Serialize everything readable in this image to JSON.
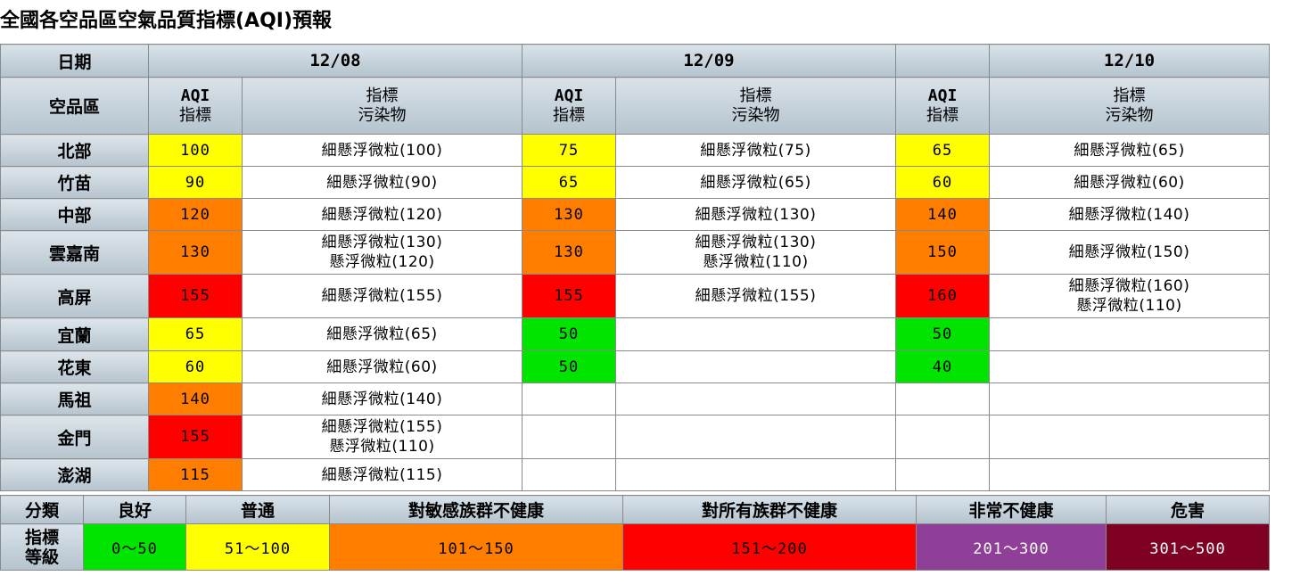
{
  "title": "全國各空品區空氣品質指標(AQI)預報",
  "header": {
    "date_label": "日期",
    "region_label": "空品區",
    "dates": [
      "12/08",
      "12/09",
      "",
      "12/10"
    ],
    "aqi_label_1": "AQI",
    "aqi_label_2": "指標",
    "poll_label_1": "指標",
    "poll_label_2": "污染物"
  },
  "colors": {
    "good": "#00e400",
    "moderate": "#ffff00",
    "usg": "#ff7e00",
    "unhealthy": "#ff0000",
    "very_unhealthy": "#8f3f97",
    "hazardous": "#7e0023"
  },
  "rows": [
    {
      "region": "北部",
      "d1": {
        "aqi": "100",
        "level": "moderate",
        "poll1": "細懸浮微粒(100)",
        "poll2": ""
      },
      "d2": {
        "aqi": "75",
        "level": "moderate",
        "poll1": "細懸浮微粒(75)",
        "poll2": ""
      },
      "d3": {
        "aqi": "65",
        "level": "moderate",
        "poll1": "細懸浮微粒(65)",
        "poll2": ""
      }
    },
    {
      "region": "竹苗",
      "d1": {
        "aqi": "90",
        "level": "moderate",
        "poll1": "細懸浮微粒(90)",
        "poll2": ""
      },
      "d2": {
        "aqi": "65",
        "level": "moderate",
        "poll1": "細懸浮微粒(65)",
        "poll2": ""
      },
      "d3": {
        "aqi": "60",
        "level": "moderate",
        "poll1": "細懸浮微粒(60)",
        "poll2": ""
      }
    },
    {
      "region": "中部",
      "d1": {
        "aqi": "120",
        "level": "usg",
        "poll1": "細懸浮微粒(120)",
        "poll2": ""
      },
      "d2": {
        "aqi": "130",
        "level": "usg",
        "poll1": "細懸浮微粒(130)",
        "poll2": ""
      },
      "d3": {
        "aqi": "140",
        "level": "usg",
        "poll1": "細懸浮微粒(140)",
        "poll2": ""
      }
    },
    {
      "region": "雲嘉南",
      "d1": {
        "aqi": "130",
        "level": "usg",
        "poll1": "細懸浮微粒(130)",
        "poll2": "懸浮微粒(120)"
      },
      "d2": {
        "aqi": "130",
        "level": "usg",
        "poll1": "細懸浮微粒(130)",
        "poll2": "懸浮微粒(110)"
      },
      "d3": {
        "aqi": "150",
        "level": "usg",
        "poll1": "細懸浮微粒(150)",
        "poll2": ""
      }
    },
    {
      "region": "高屏",
      "d1": {
        "aqi": "155",
        "level": "unhealthy",
        "poll1": "細懸浮微粒(155)",
        "poll2": ""
      },
      "d2": {
        "aqi": "155",
        "level": "unhealthy",
        "poll1": "細懸浮微粒(155)",
        "poll2": ""
      },
      "d3": {
        "aqi": "160",
        "level": "unhealthy",
        "poll1": "細懸浮微粒(160)",
        "poll2": "懸浮微粒(110)"
      }
    },
    {
      "region": "宜蘭",
      "d1": {
        "aqi": "65",
        "level": "moderate",
        "poll1": "細懸浮微粒(65)",
        "poll2": ""
      },
      "d2": {
        "aqi": "50",
        "level": "good",
        "poll1": "",
        "poll2": ""
      },
      "d3": {
        "aqi": "50",
        "level": "good",
        "poll1": "",
        "poll2": ""
      }
    },
    {
      "region": "花東",
      "d1": {
        "aqi": "60",
        "level": "moderate",
        "poll1": "細懸浮微粒(60)",
        "poll2": ""
      },
      "d2": {
        "aqi": "50",
        "level": "good",
        "poll1": "",
        "poll2": ""
      },
      "d3": {
        "aqi": "40",
        "level": "good",
        "poll1": "",
        "poll2": ""
      }
    },
    {
      "region": "馬祖",
      "d1": {
        "aqi": "140",
        "level": "usg",
        "poll1": "細懸浮微粒(140)",
        "poll2": ""
      },
      "d2": {
        "aqi": "",
        "level": "none",
        "poll1": "",
        "poll2": ""
      },
      "d3": {
        "aqi": "",
        "level": "none",
        "poll1": "",
        "poll2": ""
      }
    },
    {
      "region": "金門",
      "d1": {
        "aqi": "155",
        "level": "unhealthy",
        "poll1": "細懸浮微粒(155)",
        "poll2": "懸浮微粒(110)"
      },
      "d2": {
        "aqi": "",
        "level": "none",
        "poll1": "",
        "poll2": ""
      },
      "d3": {
        "aqi": "",
        "level": "none",
        "poll1": "",
        "poll2": ""
      }
    },
    {
      "region": "澎湖",
      "d1": {
        "aqi": "115",
        "level": "usg",
        "poll1": "細懸浮微粒(115)",
        "poll2": ""
      },
      "d2": {
        "aqi": "",
        "level": "none",
        "poll1": "",
        "poll2": ""
      },
      "d3": {
        "aqi": "",
        "level": "none",
        "poll1": "",
        "poll2": ""
      }
    }
  ],
  "legend": {
    "category_label": "分類",
    "level_label_1": "指標",
    "level_label_2": "等級",
    "items": [
      {
        "name": "良好",
        "range": "0～50",
        "level": "good"
      },
      {
        "name": "普通",
        "range": "51～100",
        "level": "moderate"
      },
      {
        "name": "對敏感族群不健康",
        "range": "101～150",
        "level": "usg"
      },
      {
        "name": "對所有族群不健康",
        "range": "151～200",
        "level": "unhealthy"
      },
      {
        "name": "非常不健康",
        "range": "201～300",
        "level": "very_unhealthy"
      },
      {
        "name": "危害",
        "range": "301～500",
        "level": "hazardous"
      }
    ]
  }
}
